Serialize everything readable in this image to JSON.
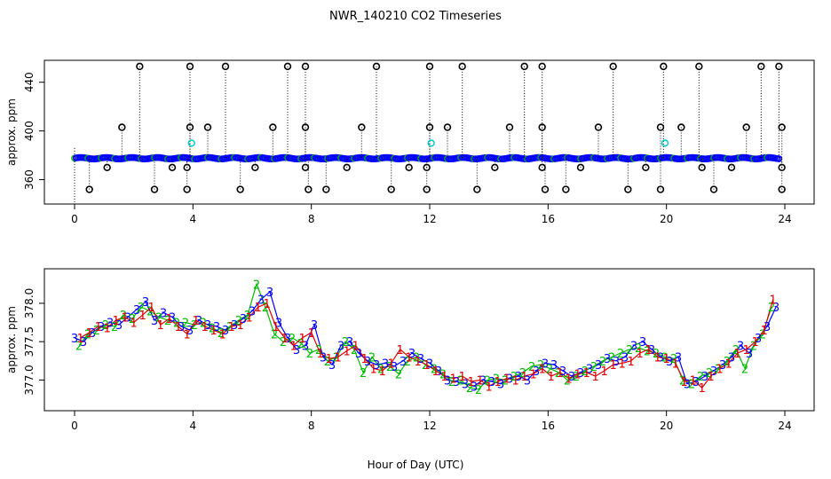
{
  "title": "NWR_140210  CO2 Timeseries",
  "xlabel": "Hour of Day (UTC)",
  "colors": {
    "blue": "#0000ff",
    "green": "#00bb00",
    "red": "#dd0000",
    "cyan": "#00cccc",
    "black": "#000000",
    "orange": "#ff9900"
  },
  "chart_data": [
    {
      "type": "scatter",
      "panel": "top",
      "ylabel": "approx. ppm",
      "xlim": [
        0,
        24
      ],
      "ylim": [
        340,
        458
      ],
      "x_ticks": [
        0,
        4,
        8,
        12,
        16,
        20,
        24
      ],
      "y_ticks": [
        360,
        400,
        440
      ],
      "baseline_ppm": 377.6,
      "flagged_high": [
        2.2,
        3.9,
        5.1,
        7.2,
        7.8,
        10.2,
        12.0,
        13.1,
        15.2,
        15.8,
        18.2,
        19.9,
        21.1,
        23.2,
        23.8
      ],
      "flagged_mid": [
        1.6,
        3.9,
        4.5,
        6.7,
        7.8,
        9.7,
        12.0,
        12.6,
        14.7,
        15.8,
        17.7,
        19.8,
        20.5,
        22.7,
        23.9
      ],
      "flagged_low": [
        0.5,
        2.7,
        3.8,
        5.6,
        7.9,
        8.5,
        10.7,
        11.9,
        13.6,
        15.9,
        16.6,
        18.7,
        19.8,
        21.6,
        23.9
      ],
      "flagged_minor": [
        1.1,
        3.3,
        3.8,
        6.1,
        7.8,
        9.2,
        11.3,
        11.9,
        14.2,
        15.8,
        17.1,
        19.3,
        21.2,
        22.2,
        23.9
      ],
      "cyan_points": [
        [
          3.95,
          390
        ],
        [
          12.05,
          390
        ],
        [
          19.95,
          390
        ]
      ]
    },
    {
      "type": "line",
      "panel": "bottom",
      "ylabel": "approx. ppm",
      "xlim": [
        0,
        24
      ],
      "ylim": [
        376.6,
        378.45
      ],
      "x_ticks": [
        0,
        4,
        8,
        12,
        16,
        20,
        24
      ],
      "y_ticks": [
        377.0,
        377.5,
        378.0
      ],
      "y_tick_labels": [
        "377.0",
        "377.5",
        "378.0"
      ],
      "x_ticks_labels": [
        "0",
        "4",
        "8",
        "12",
        "16",
        "20",
        "24"
      ],
      "series": [
        {
          "name": "3",
          "color": "#0000ff",
          "x": [
            0,
            0.3,
            0.6,
            0.9,
            1.2,
            1.5,
            1.8,
            2.1,
            2.4,
            2.7,
            3.0,
            3.3,
            3.6,
            3.9,
            4.2,
            4.5,
            4.8,
            5.1,
            5.4,
            5.7,
            6.0,
            6.3,
            6.6,
            6.9,
            7.2,
            7.5,
            7.8,
            8.1,
            8.4,
            8.7,
            9.0,
            9.3,
            9.6,
            9.9,
            10.2,
            10.5,
            10.8,
            11.1,
            11.4,
            11.7,
            12.0,
            12.3,
            12.6,
            12.9,
            13.2,
            13.5,
            13.8,
            14.1,
            14.4,
            14.7,
            15.0,
            15.3,
            15.6,
            15.9,
            16.2,
            16.5,
            16.8,
            17.1,
            17.4,
            17.7,
            18.0,
            18.3,
            18.6,
            18.9,
            19.2,
            19.5,
            19.8,
            20.1,
            20.4,
            20.7,
            21.0,
            21.3,
            21.6,
            21.9,
            22.2,
            22.5,
            22.8,
            23.1,
            23.4,
            23.7
          ],
          "y": [
            377.55,
            377.5,
            377.62,
            377.7,
            377.75,
            377.72,
            377.82,
            377.92,
            378.02,
            377.78,
            377.88,
            377.82,
            377.7,
            377.65,
            377.78,
            377.72,
            377.7,
            377.65,
            377.72,
            377.8,
            377.9,
            378.05,
            378.15,
            377.75,
            377.55,
            377.4,
            377.45,
            377.72,
            377.3,
            377.2,
            377.45,
            377.5,
            377.35,
            377.25,
            377.2,
            377.22,
            377.18,
            377.25,
            377.35,
            377.28,
            377.22,
            377.12,
            377.0,
            376.98,
            376.95,
            376.92,
            377.0,
            376.98,
            376.95,
            377.02,
            377.05,
            377.0,
            377.12,
            377.22,
            377.2,
            377.12,
            377.05,
            377.1,
            377.15,
            377.2,
            377.28,
            377.25,
            377.3,
            377.45,
            377.5,
            377.4,
            377.3,
            377.25,
            377.3,
            376.95,
            376.98,
            377.05,
            377.12,
            377.2,
            377.3,
            377.45,
            377.35,
            377.55,
            377.7,
            377.95
          ]
        },
        {
          "name": "2",
          "color": "#00bb00",
          "x": [
            0.15,
            0.45,
            0.75,
            1.05,
            1.35,
            1.65,
            1.95,
            2.25,
            2.55,
            2.85,
            3.15,
            3.45,
            3.75,
            4.05,
            4.35,
            4.65,
            4.95,
            5.25,
            5.55,
            5.85,
            6.15,
            6.45,
            6.75,
            7.05,
            7.35,
            7.65,
            7.95,
            8.25,
            8.55,
            8.85,
            9.15,
            9.45,
            9.75,
            10.05,
            10.35,
            10.65,
            10.95,
            11.25,
            11.55,
            11.85,
            12.15,
            12.45,
            12.75,
            13.05,
            13.35,
            13.65,
            13.95,
            14.25,
            14.55,
            14.85,
            15.15,
            15.45,
            15.75,
            16.05,
            16.35,
            16.65,
            16.95,
            17.25,
            17.55,
            17.85,
            18.15,
            18.45,
            18.75,
            19.05,
            19.35,
            19.65,
            19.95,
            20.25,
            20.55,
            20.85,
            21.15,
            21.45,
            21.75,
            22.05,
            22.35,
            22.65,
            22.95,
            23.25,
            23.55
          ],
          "y": [
            377.45,
            377.6,
            377.65,
            377.72,
            377.7,
            377.85,
            377.8,
            377.95,
            377.9,
            377.82,
            377.78,
            377.75,
            377.75,
            377.72,
            377.75,
            377.68,
            377.62,
            377.7,
            377.78,
            377.85,
            378.25,
            377.95,
            377.6,
            377.5,
            377.55,
            377.48,
            377.35,
            377.4,
            377.25,
            377.3,
            377.5,
            377.4,
            377.1,
            377.3,
            377.15,
            377.18,
            377.08,
            377.25,
            377.3,
            377.2,
            377.15,
            377.08,
            376.98,
            377.0,
            376.9,
            376.88,
            377.0,
            377.02,
            377.0,
            377.05,
            377.1,
            377.18,
            377.2,
            377.15,
            377.1,
            377.0,
            377.05,
            377.12,
            377.18,
            377.25,
            377.3,
            377.35,
            377.4,
            377.42,
            377.38,
            377.35,
            377.3,
            377.28,
            377.0,
            376.95,
            377.05,
            377.1,
            377.15,
            377.25,
            377.4,
            377.15,
            377.45,
            377.6,
            377.95
          ]
        },
        {
          "name": "1",
          "color": "#dd0000",
          "x": [
            0.2,
            0.5,
            0.8,
            1.1,
            1.4,
            1.7,
            2.0,
            2.3,
            2.6,
            2.9,
            3.2,
            3.5,
            3.8,
            4.1,
            4.4,
            4.7,
            5.0,
            5.3,
            5.6,
            5.9,
            6.2,
            6.5,
            6.8,
            7.1,
            7.4,
            7.7,
            8.0,
            8.3,
            8.6,
            8.9,
            9.2,
            9.5,
            9.8,
            10.1,
            10.4,
            10.7,
            11.0,
            11.3,
            11.6,
            11.9,
            12.2,
            12.5,
            12.8,
            13.1,
            13.4,
            13.7,
            14.0,
            14.3,
            14.6,
            14.9,
            15.2,
            15.5,
            15.8,
            16.1,
            16.4,
            16.7,
            17.0,
            17.3,
            17.6,
            17.9,
            18.2,
            18.5,
            18.8,
            19.1,
            19.4,
            19.7,
            20.0,
            20.3,
            20.6,
            20.9,
            21.2,
            21.5,
            21.8,
            22.1,
            22.4,
            22.7,
            23.0,
            23.3,
            23.6
          ],
          "y": [
            377.55,
            377.62,
            377.7,
            377.68,
            377.78,
            377.82,
            377.75,
            377.85,
            377.95,
            377.72,
            377.8,
            377.7,
            377.6,
            377.78,
            377.7,
            377.65,
            377.6,
            377.7,
            377.72,
            377.82,
            377.95,
            378.0,
            377.7,
            377.55,
            377.45,
            377.55,
            377.62,
            377.35,
            377.28,
            377.3,
            377.38,
            377.45,
            377.28,
            377.15,
            377.12,
            377.22,
            377.4,
            377.3,
            377.25,
            377.2,
            377.12,
            377.05,
            377.02,
            377.05,
            376.98,
            377.0,
            376.92,
            376.98,
            377.02,
            377.0,
            377.05,
            377.08,
            377.15,
            377.05,
            377.1,
            377.02,
            377.08,
            377.1,
            377.05,
            377.12,
            377.2,
            377.22,
            377.25,
            377.35,
            377.4,
            377.3,
            377.28,
            377.22,
            376.98,
            377.0,
            376.9,
            377.05,
            377.15,
            377.22,
            377.35,
            377.4,
            377.5,
            377.65,
            378.05
          ]
        }
      ]
    }
  ]
}
